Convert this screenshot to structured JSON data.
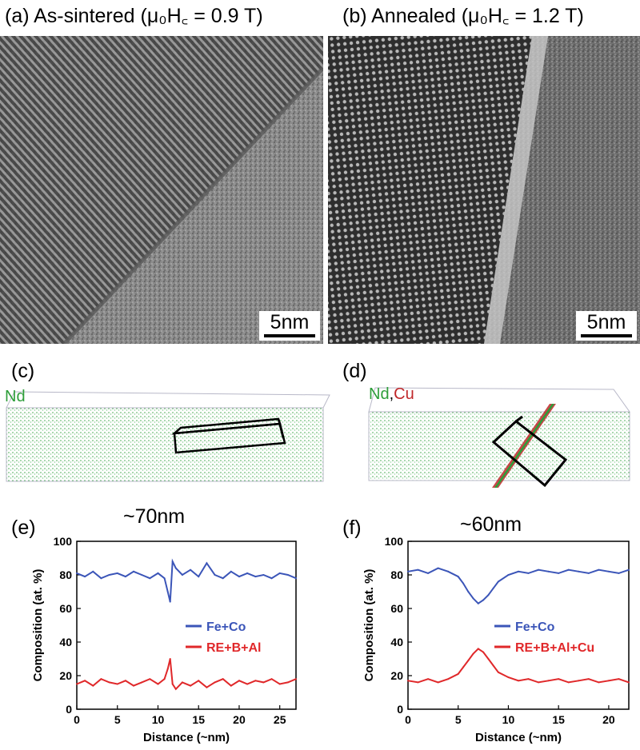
{
  "panels": {
    "a": {
      "label": "(a) As-sintered (μ₀H꜀ = 0.9 T)",
      "scale": "5nm"
    },
    "b": {
      "label": "(b) Annealed (μ₀H꜀ = 1.2 T)",
      "scale": "5nm"
    },
    "c": {
      "label": "(c)",
      "elements": [
        "Nd"
      ],
      "dimension": "~70nm"
    },
    "d": {
      "label": "(d)",
      "elements": [
        "Nd",
        "Cu"
      ],
      "dimension": "~60nm"
    },
    "e": {
      "label": "(e)"
    },
    "f": {
      "label": "(f)"
    }
  },
  "colors": {
    "nd": "#2e9e3a",
    "cu": "#c0282a",
    "fe_co": "#3b55b8",
    "re": "#e0282a"
  },
  "chart_data": [
    {
      "type": "line",
      "panel": "e",
      "xlabel": "Distance (~nm)",
      "ylabel": "Composition (at. %)",
      "xlim": [
        0,
        27
      ],
      "ylim": [
        0,
        100
      ],
      "xticks": [
        0,
        5,
        10,
        15,
        20,
        25
      ],
      "yticks": [
        0,
        20,
        40,
        60,
        80,
        100
      ],
      "legend_position": "right-middle",
      "series": [
        {
          "name": "Fe+Co",
          "color": "#3b55b8",
          "x": [
            0,
            1,
            2,
            3,
            4,
            5,
            6,
            7,
            8,
            9,
            10,
            10.8,
            11.2,
            11.5,
            11.8,
            12.2,
            13,
            14,
            15,
            16,
            17,
            18,
            19,
            20,
            21,
            22,
            23,
            24,
            25,
            26,
            27
          ],
          "y": [
            81,
            79,
            82,
            78,
            80,
            81,
            79,
            82,
            80,
            78,
            81,
            78,
            70,
            64,
            88,
            84,
            80,
            83,
            79,
            87,
            80,
            78,
            82,
            79,
            81,
            79,
            80,
            78,
            81,
            80,
            78
          ]
        },
        {
          "name": "RE+B+Al",
          "color": "#e0282a",
          "x": [
            0,
            1,
            2,
            3,
            4,
            5,
            6,
            7,
            8,
            9,
            10,
            10.8,
            11.2,
            11.5,
            11.8,
            12.2,
            13,
            14,
            15,
            16,
            17,
            18,
            19,
            20,
            21,
            22,
            23,
            24,
            25,
            26,
            27
          ],
          "y": [
            15,
            17,
            14,
            18,
            16,
            15,
            17,
            14,
            16,
            18,
            15,
            18,
            24,
            30,
            15,
            12,
            16,
            14,
            17,
            13,
            16,
            18,
            14,
            17,
            15,
            17,
            16,
            18,
            15,
            16,
            18
          ]
        }
      ]
    },
    {
      "type": "line",
      "panel": "f",
      "xlabel": "Distance (~nm)",
      "ylabel": "Composition (at. %)",
      "xlim": [
        0,
        22
      ],
      "ylim": [
        0,
        100
      ],
      "xticks": [
        0,
        5,
        10,
        15,
        20
      ],
      "yticks": [
        0,
        20,
        40,
        60,
        80,
        100
      ],
      "legend_position": "right-middle",
      "series": [
        {
          "name": "Fe+Co",
          "color": "#3b55b8",
          "x": [
            0,
            1,
            2,
            3,
            4,
            5,
            5.5,
            6,
            6.5,
            7,
            7.5,
            8,
            8.5,
            9,
            10,
            11,
            12,
            13,
            14,
            15,
            16,
            17,
            18,
            19,
            20,
            21,
            22
          ],
          "y": [
            82,
            83,
            81,
            84,
            82,
            79,
            75,
            70,
            66,
            63,
            65,
            68,
            72,
            76,
            80,
            82,
            81,
            83,
            82,
            81,
            83,
            82,
            81,
            83,
            82,
            81,
            83
          ]
        },
        {
          "name": "RE+B+Al+Cu",
          "color": "#e0282a",
          "x": [
            0,
            1,
            2,
            3,
            4,
            5,
            5.5,
            6,
            6.5,
            7,
            7.5,
            8,
            8.5,
            9,
            10,
            11,
            12,
            13,
            14,
            15,
            16,
            17,
            18,
            19,
            20,
            21,
            22
          ],
          "y": [
            17,
            16,
            18,
            16,
            18,
            21,
            25,
            29,
            33,
            36,
            34,
            30,
            26,
            22,
            19,
            17,
            18,
            16,
            17,
            18,
            16,
            17,
            18,
            16,
            17,
            18,
            16
          ]
        }
      ]
    }
  ]
}
